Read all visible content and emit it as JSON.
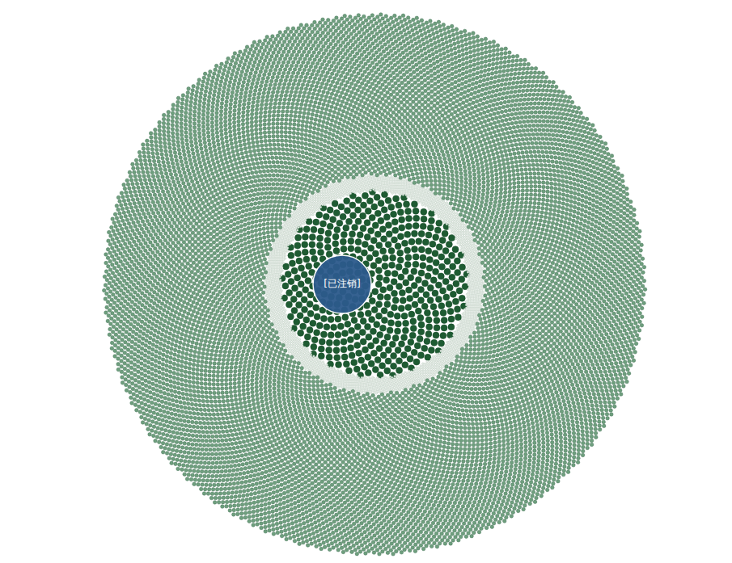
{
  "chart_data": {
    "type": "bubble",
    "tick_labels": false,
    "highlight": {
      "label": "[已注销]",
      "size": 72,
      "color": "#2c5a8c"
    },
    "groups": [
      {
        "count": 490,
        "size": 8,
        "color": "#1e5b32"
      },
      {
        "count": 1900,
        "size": 2.5,
        "color": "#e8efe9"
      },
      {
        "count": 11000,
        "size": 4.5,
        "color": "#6f9f7e"
      }
    ]
  }
}
